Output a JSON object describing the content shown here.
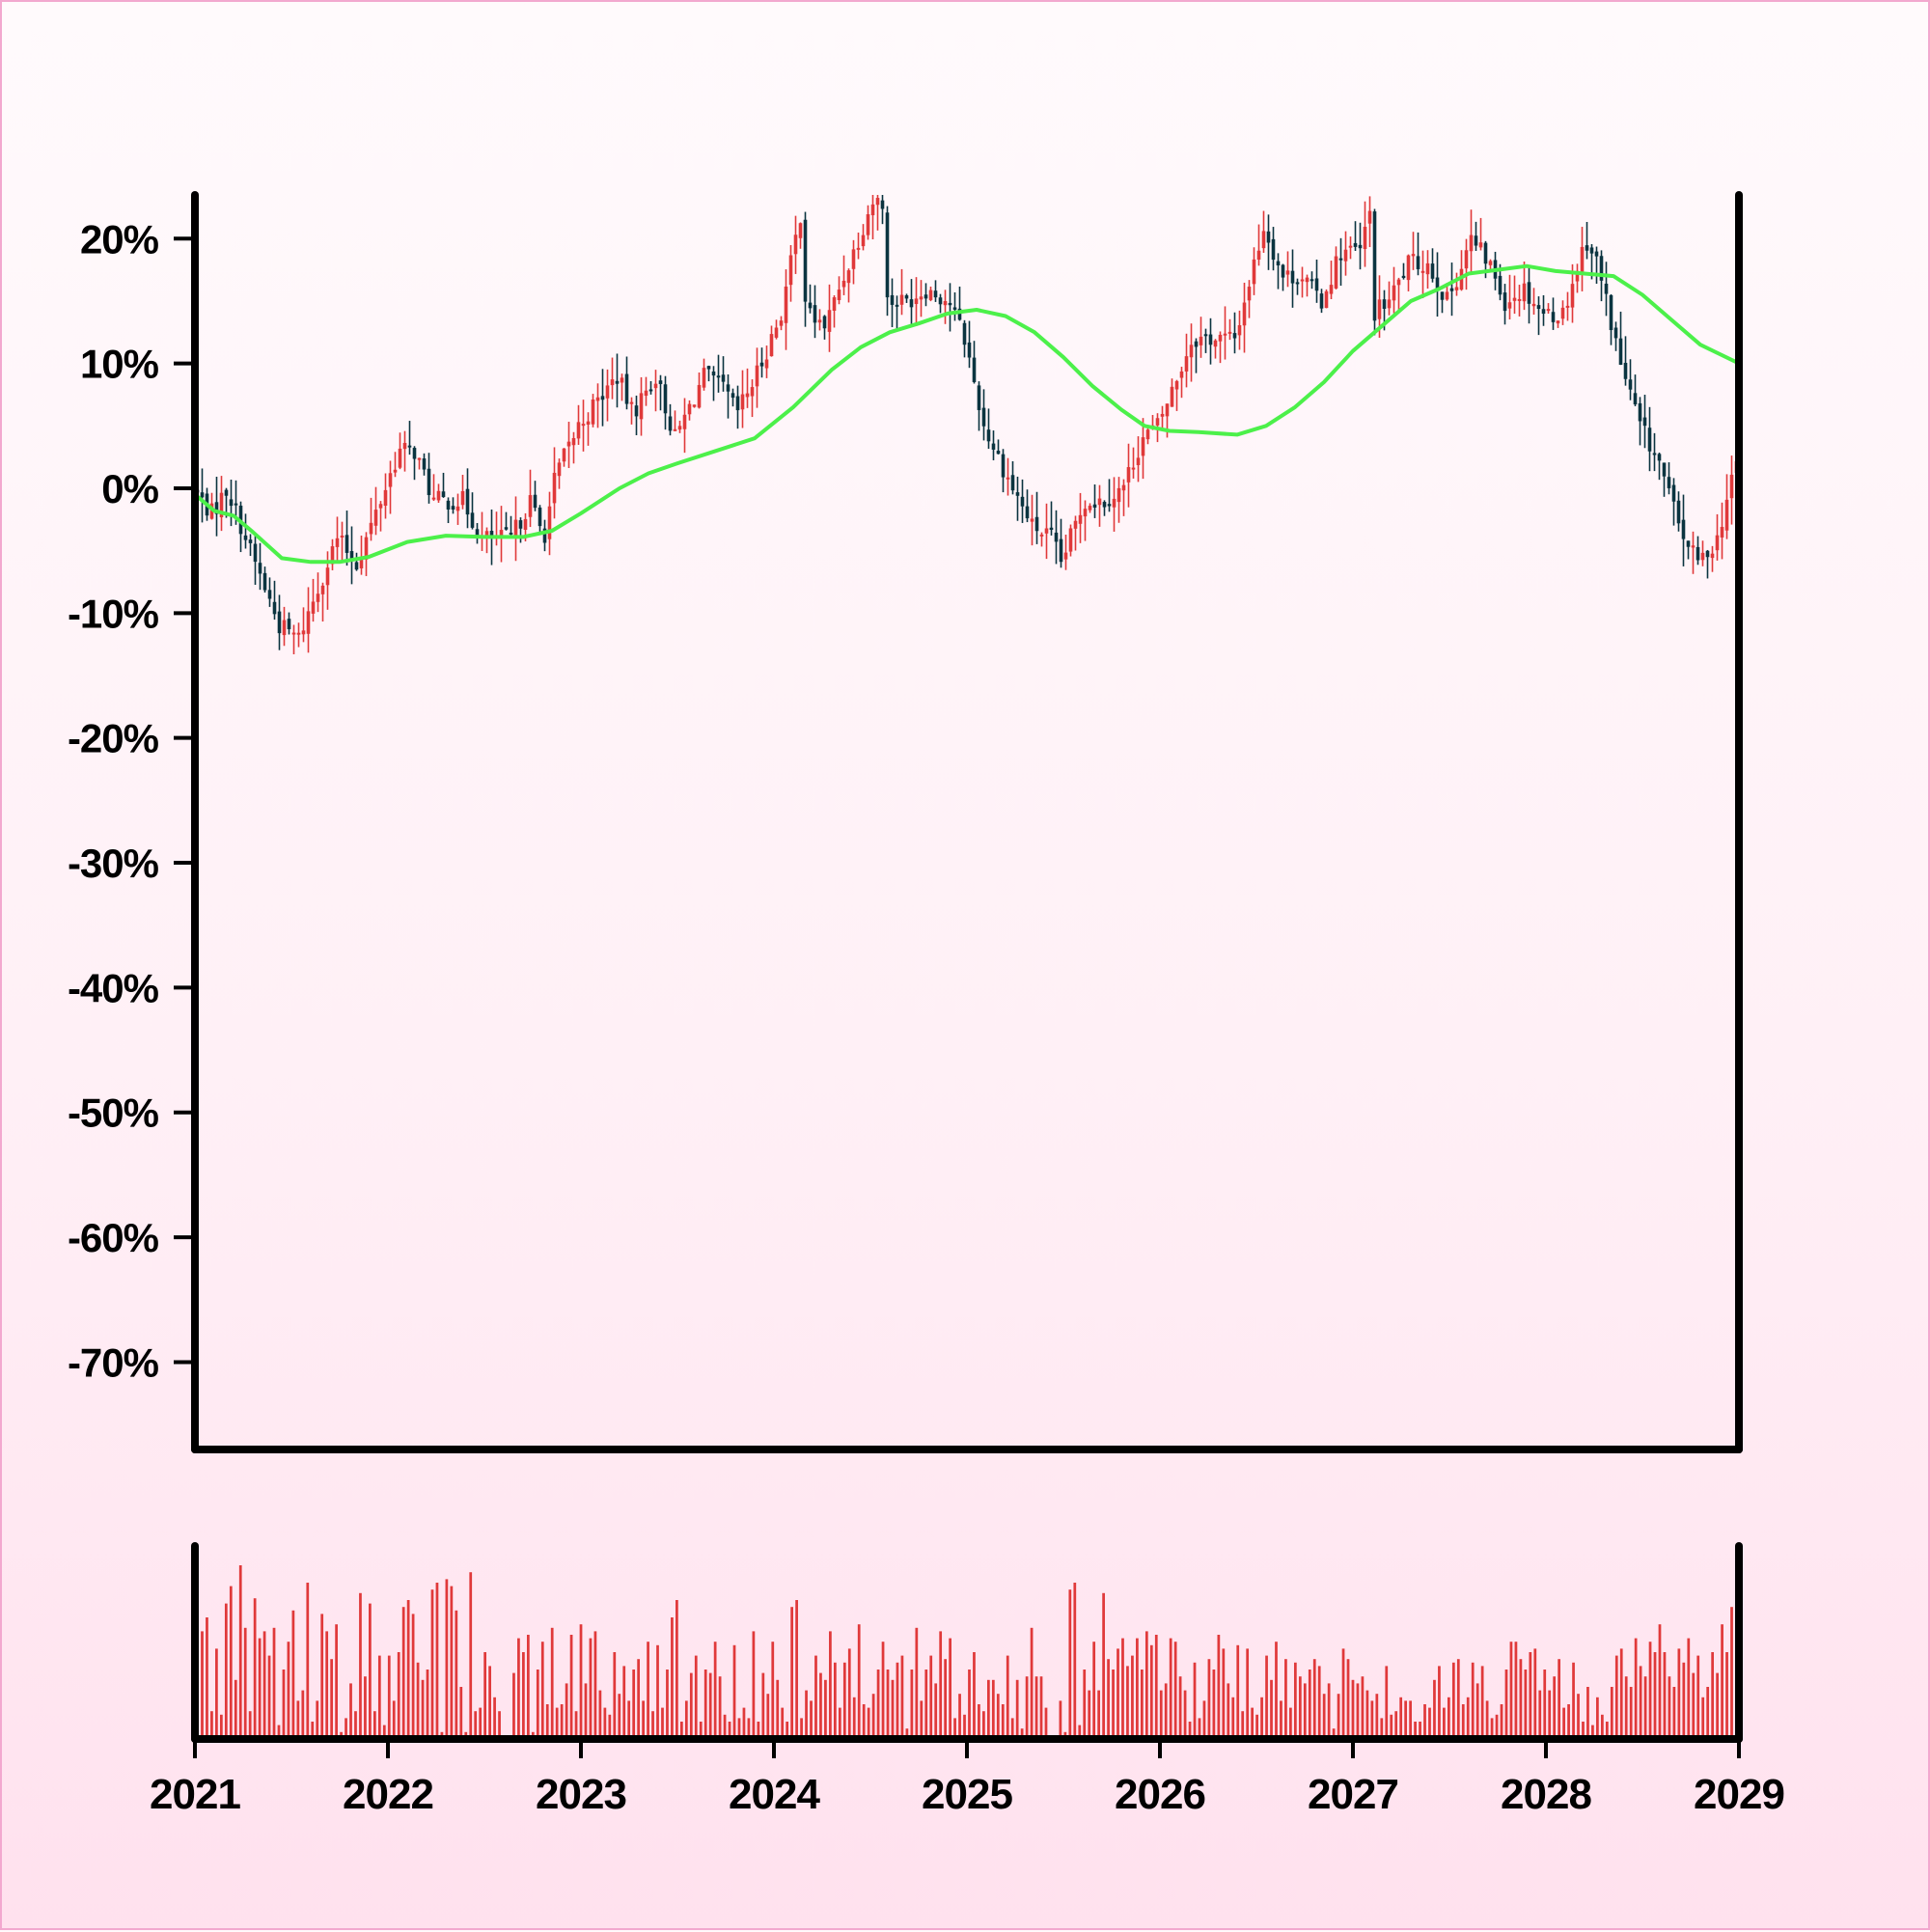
{
  "chart_data": {
    "type": "candlestick",
    "title": "",
    "xlabel": "",
    "ylabel": "",
    "colors": {
      "up": "#e0393a",
      "down": "#0b3440",
      "moving_average": "#4cf04a",
      "volume": "#e0393a",
      "axes": "#000000"
    },
    "price_axis": {
      "ylim": [
        -77,
        23.5
      ],
      "ticks": [
        20,
        10,
        0,
        -10,
        -20,
        -30,
        -40,
        -50,
        -60,
        -70
      ],
      "tick_labels": [
        "20%",
        "10%",
        "0%",
        "-10%",
        "-20%",
        "-30%",
        "-40%",
        "-50%",
        "-60%",
        "-70%"
      ]
    },
    "time_axis": {
      "xlim": [
        2021,
        2029
      ],
      "ticks": [
        2021,
        2022,
        2023,
        2024,
        2025,
        2026,
        2027,
        2028,
        2029
      ],
      "tick_labels": [
        "2021",
        "2022",
        "2023",
        "2024",
        "2025",
        "2026",
        "2027",
        "2028",
        "2029"
      ]
    },
    "candles_per_year": 40,
    "price_path_percent": [
      [
        2021.0,
        0
      ],
      [
        2021.1,
        -2
      ],
      [
        2021.18,
        0
      ],
      [
        2021.3,
        -5
      ],
      [
        2021.45,
        -11
      ],
      [
        2021.55,
        -12
      ],
      [
        2021.65,
        -8
      ],
      [
        2021.75,
        -4
      ],
      [
        2021.85,
        -6
      ],
      [
        2021.95,
        -2
      ],
      [
        2022.07,
        3
      ],
      [
        2022.15,
        3
      ],
      [
        2022.25,
        -1
      ],
      [
        2022.4,
        -1
      ],
      [
        2022.5,
        -4
      ],
      [
        2022.65,
        -4
      ],
      [
        2022.75,
        -1
      ],
      [
        2022.82,
        -4
      ],
      [
        2022.88,
        1
      ],
      [
        2023.0,
        5
      ],
      [
        2023.1,
        7
      ],
      [
        2023.2,
        9
      ],
      [
        2023.28,
        6
      ],
      [
        2023.4,
        9
      ],
      [
        2023.5,
        4
      ],
      [
        2023.65,
        9
      ],
      [
        2023.75,
        8
      ],
      [
        2023.82,
        6
      ],
      [
        2023.92,
        9
      ],
      [
        2024.05,
        14
      ],
      [
        2024.15,
        22
      ],
      [
        2024.18,
        14
      ],
      [
        2024.28,
        13
      ],
      [
        2024.35,
        16
      ],
      [
        2024.45,
        20
      ],
      [
        2024.52,
        23
      ],
      [
        2024.58,
        23
      ],
      [
        2024.6,
        15
      ],
      [
        2024.7,
        15
      ],
      [
        2024.8,
        16
      ],
      [
        2024.92,
        15
      ],
      [
        2025.0,
        12
      ],
      [
        2025.1,
        5
      ],
      [
        2025.25,
        0
      ],
      [
        2025.35,
        -3
      ],
      [
        2025.45,
        -4
      ],
      [
        2025.5,
        -6
      ],
      [
        2025.62,
        -1
      ],
      [
        2025.72,
        -1
      ],
      [
        2025.82,
        0
      ],
      [
        2025.92,
        4
      ],
      [
        2026.0,
        5
      ],
      [
        2026.08,
        8
      ],
      [
        2026.18,
        12
      ],
      [
        2026.4,
        12
      ],
      [
        2026.5,
        18
      ],
      [
        2026.55,
        21
      ],
      [
        2026.65,
        17
      ],
      [
        2026.75,
        17
      ],
      [
        2026.85,
        15
      ],
      [
        2026.95,
        19
      ],
      [
        2027.05,
        19
      ],
      [
        2027.1,
        22
      ],
      [
        2027.12,
        14
      ],
      [
        2027.2,
        15
      ],
      [
        2027.3,
        18
      ],
      [
        2027.4,
        18
      ],
      [
        2027.5,
        15
      ],
      [
        2027.58,
        18
      ],
      [
        2027.62,
        20
      ],
      [
        2027.72,
        18
      ],
      [
        2027.8,
        15
      ],
      [
        2027.9,
        16
      ],
      [
        2028.0,
        14
      ],
      [
        2028.1,
        14
      ],
      [
        2028.22,
        20
      ],
      [
        2028.28,
        18
      ],
      [
        2028.4,
        10
      ],
      [
        2028.5,
        5
      ],
      [
        2028.6,
        2
      ],
      [
        2028.7,
        -3
      ],
      [
        2028.8,
        -6
      ],
      [
        2028.9,
        -4
      ],
      [
        2029.0,
        2
      ]
    ],
    "moving_average_percent": [
      [
        2021.0,
        -0.5
      ],
      [
        2021.1,
        -1.8
      ],
      [
        2021.2,
        -2.2
      ],
      [
        2021.3,
        -3.5
      ],
      [
        2021.45,
        -5.6
      ],
      [
        2021.6,
        -5.9
      ],
      [
        2021.75,
        -5.9
      ],
      [
        2021.9,
        -5.5
      ],
      [
        2022.1,
        -4.3
      ],
      [
        2022.3,
        -3.8
      ],
      [
        2022.5,
        -3.9
      ],
      [
        2022.7,
        -3.9
      ],
      [
        2022.85,
        -3.4
      ],
      [
        2023.0,
        -2.0
      ],
      [
        2023.2,
        0.0
      ],
      [
        2023.35,
        1.2
      ],
      [
        2023.5,
        2.0
      ],
      [
        2023.7,
        3.0
      ],
      [
        2023.9,
        4.0
      ],
      [
        2024.1,
        6.5
      ],
      [
        2024.3,
        9.5
      ],
      [
        2024.45,
        11.3
      ],
      [
        2024.6,
        12.5
      ],
      [
        2024.75,
        13.2
      ],
      [
        2024.9,
        14.0
      ],
      [
        2025.05,
        14.3
      ],
      [
        2025.2,
        13.8
      ],
      [
        2025.35,
        12.5
      ],
      [
        2025.5,
        10.5
      ],
      [
        2025.65,
        8.2
      ],
      [
        2025.8,
        6.3
      ],
      [
        2025.92,
        5.0
      ],
      [
        2026.05,
        4.6
      ],
      [
        2026.2,
        4.5
      ],
      [
        2026.4,
        4.3
      ],
      [
        2026.55,
        5.0
      ],
      [
        2026.7,
        6.5
      ],
      [
        2026.85,
        8.5
      ],
      [
        2027.0,
        11.0
      ],
      [
        2027.15,
        13.0
      ],
      [
        2027.3,
        15.0
      ],
      [
        2027.45,
        16.0
      ],
      [
        2027.6,
        17.2
      ],
      [
        2027.75,
        17.5
      ],
      [
        2027.9,
        17.8
      ],
      [
        2028.05,
        17.4
      ],
      [
        2028.2,
        17.2
      ],
      [
        2028.35,
        17.0
      ],
      [
        2028.5,
        15.5
      ],
      [
        2028.65,
        13.5
      ],
      [
        2028.8,
        11.5
      ],
      [
        2029.0,
        10.0
      ]
    ],
    "volume_relative": [
      0.62,
      0.7,
      0.16,
      0.52,
      0.14,
      0.78,
      0.88,
      0.34,
      1.0,
      0.64,
      0.16,
      0.81,
      0.58,
      0.62,
      0.48,
      0.64,
      0.08,
      0.4,
      0.56,
      0.74,
      0.22,
      0.28,
      0.9,
      0.1,
      0.22,
      0.72,
      0.62,
      0.46,
      0.66,
      0.04,
      0.12,
      0.32,
      0.16,
      0.84,
      0.36,
      0.78,
      0.16,
      0.48,
      0.08,
      0.48,
      0.22,
      0.5,
      0.76,
      0.8,
      0.72,
      0.44,
      0.34,
      0.4,
      0.86,
      0.9,
      0.04,
      0.92,
      0.88,
      0.74,
      0.3,
      0.04,
      0.96,
      0.16,
      0.18,
      0.5,
      0.42,
      0.24,
      0.16,
      0.0,
      0.02,
      0.38,
      0.58,
      0.5,
      0.6,
      0.04,
      0.4,
      0.56,
      0.2,
      0.64,
      0.18,
      0.2,
      0.32,
      0.6,
      0.16,
      0.66,
      0.32,
      0.58,
      0.62,
      0.28,
      0.18,
      0.14,
      0.5,
      0.26,
      0.42,
      0.22,
      0.4,
      0.46,
      0.22,
      0.56,
      0.16,
      0.54,
      0.18,
      0.4,
      0.7,
      0.8,
      0.1,
      0.22,
      0.38,
      0.48,
      0.1,
      0.4,
      0.38,
      0.56,
      0.36,
      0.14,
      0.1,
      0.54,
      0.12,
      0.18,
      0.12,
      0.62,
      0.1,
      0.38,
      0.26,
      0.56,
      0.34,
      0.18,
      0.1,
      0.76,
      0.8,
      0.12,
      0.28,
      0.22,
      0.48,
      0.38,
      0.34,
      0.62,
      0.44,
      0.18,
      0.44,
      0.52,
      0.24,
      0.66,
      0.2,
      0.18,
      0.26,
      0.4,
      0.56,
      0.4,
      0.34,
      0.44,
      0.48,
      0.06,
      0.4,
      0.64,
      0.22,
      0.4,
      0.48,
      0.32,
      0.62,
      0.46,
      0.58,
      0.12,
      0.26,
      0.14,
      0.4,
      0.5,
      0.2,
      0.16,
      0.34,
      0.34,
      0.26,
      0.2,
      0.48,
      0.12,
      0.34,
      0.06,
      0.36,
      0.64,
      0.36,
      0.36,
      0.18,
      0.02,
      0.0,
      0.22,
      0.04,
      0.86,
      0.9,
      0.08,
      0.4,
      0.28,
      0.56,
      0.28,
      0.84,
      0.46,
      0.4,
      0.52,
      0.58,
      0.42,
      0.48,
      0.58,
      0.4,
      0.62,
      0.54,
      0.6,
      0.28,
      0.32,
      0.58,
      0.56,
      0.36,
      0.28,
      0.1,
      0.44,
      0.12,
      0.22,
      0.46,
      0.4,
      0.6,
      0.52,
      0.32,
      0.24,
      0.54,
      0.16,
      0.52,
      0.18,
      0.14,
      0.24,
      0.48,
      0.34,
      0.56,
      0.22,
      0.46,
      0.18,
      0.44,
      0.36,
      0.32,
      0.4,
      0.46,
      0.42,
      0.26,
      0.32,
      0.06,
      0.26,
      0.52,
      0.46,
      0.34,
      0.32,
      0.36,
      0.28,
      0.22,
      0.26,
      0.12,
      0.42,
      0.14,
      0.16,
      0.24,
      0.22,
      0.22,
      0.1,
      0.1,
      0.2,
      0.18,
      0.34,
      0.42,
      0.18,
      0.24,
      0.44,
      0.46,
      0.2,
      0.24,
      0.44,
      0.32,
      0.42,
      0.22,
      0.12,
      0.14,
      0.2,
      0.4,
      0.56,
      0.56,
      0.46,
      0.4,
      0.5,
      0.52,
      0.28,
      0.4,
      0.28,
      0.36,
      0.46,
      0.18,
      0.2,
      0.44,
      0.26,
      0.1,
      0.3,
      0.08,
      0.24,
      0.14,
      0.1,
      0.3,
      0.48,
      0.52,
      0.36,
      0.3,
      0.58,
      0.42,
      0.36,
      0.56,
      0.5,
      0.66,
      0.5,
      0.36,
      0.3,
      0.52,
      0.44,
      0.58,
      0.38,
      0.48,
      0.24,
      0.3,
      0.5,
      0.38,
      0.66,
      0.5,
      0.76
    ]
  }
}
